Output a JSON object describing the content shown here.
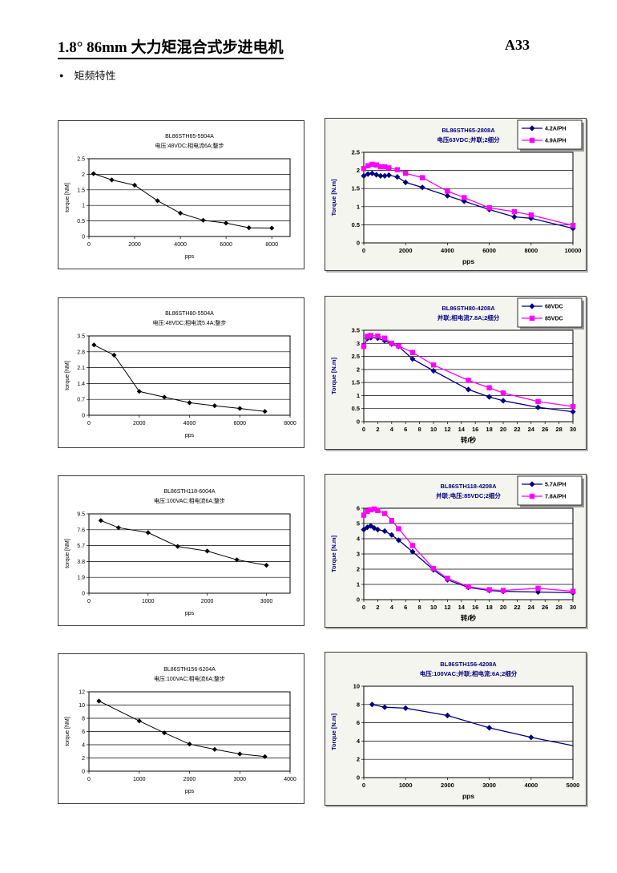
{
  "page": {
    "title": "1.8°  86mm 大力矩混合式步进电机",
    "page_number": "A33",
    "bullet_glyph": "●",
    "section_heading": "矩频特性"
  },
  "colors": {
    "navy": "#000080",
    "magenta": "#FF00FF",
    "black": "#000000",
    "left_chart_bg": "#FFFFFF",
    "right_chart_bg": "#F5F5EF"
  },
  "chart_data": [
    {
      "type": "line",
      "style": "plain",
      "bg": "#FFFFFF",
      "title": "BL86STH65-5904A",
      "subtitle": "电压:48VDC;相电流6A;整步",
      "xlabel": "pps",
      "ylabel": "torque  [NM]",
      "xlim": [
        0,
        8800
      ],
      "ylim": [
        0,
        2.5
      ],
      "xticks": [
        0,
        2000,
        4000,
        6000,
        8000
      ],
      "yticks": [
        0,
        0.5,
        1,
        1.5,
        2,
        2.5
      ],
      "grid": "horizontal",
      "legend": false,
      "series": [
        {
          "name": "",
          "color": "#000000",
          "marker": "diamond",
          "x": [
            200,
            1000,
            2000,
            3000,
            4000,
            5000,
            6000,
            7000,
            8000
          ],
          "y": [
            2.02,
            1.82,
            1.65,
            1.15,
            0.75,
            0.52,
            0.43,
            0.28,
            0.27
          ]
        }
      ]
    },
    {
      "type": "line",
      "style": "excel",
      "bg": "#F5F5EF",
      "title": "BL86STH65-2808A",
      "subtitle": "电压63VDC;并联;2细分",
      "xlabel": "pps",
      "ylabel": "Torque [N.m]",
      "xlim": [
        0,
        10000
      ],
      "ylim": [
        0,
        2.5
      ],
      "xticks": [
        0,
        2000,
        4000,
        6000,
        8000,
        10000
      ],
      "yticks": [
        0,
        0.5,
        1,
        1.5,
        2,
        2.5
      ],
      "grid": "horizontal",
      "legend": true,
      "legend_position": "top-right",
      "series": [
        {
          "name": "4.2A/PH",
          "color": "#000080",
          "marker": "diamond",
          "x": [
            0,
            200,
            400,
            600,
            800,
            1000,
            1200,
            1600,
            2000,
            2800,
            4000,
            4800,
            6000,
            7200,
            8000,
            10000
          ],
          "y": [
            1.85,
            1.9,
            1.92,
            1.88,
            1.85,
            1.85,
            1.87,
            1.82,
            1.67,
            1.53,
            1.3,
            1.15,
            0.92,
            0.72,
            0.68,
            0.4
          ]
        },
        {
          "name": "4.9A/PH",
          "color": "#FF00FF",
          "marker": "square",
          "x": [
            0,
            200,
            400,
            600,
            800,
            1000,
            1200,
            1600,
            2000,
            2800,
            4000,
            4800,
            6000,
            7200,
            8000,
            10000
          ],
          "y": [
            2.05,
            2.13,
            2.17,
            2.15,
            2.1,
            2.1,
            2.07,
            2.02,
            1.92,
            1.8,
            1.43,
            1.25,
            0.97,
            0.86,
            0.77,
            0.48
          ]
        }
      ]
    },
    {
      "type": "line",
      "style": "plain",
      "bg": "#FFFFFF",
      "title": "BL86STH80-5504A",
      "subtitle": "电压:48VDC;相电流5.4A;整步",
      "xlabel": "pps",
      "ylabel": "torque  [NM]",
      "xlim": [
        0,
        8000
      ],
      "ylim": [
        0,
        3.5
      ],
      "xticks": [
        0,
        2000,
        4000,
        6000,
        8000
      ],
      "yticks": [
        0,
        0.7,
        1.4,
        2.1,
        2.8,
        3.5
      ],
      "grid": "horizontal",
      "legend": false,
      "series": [
        {
          "name": "",
          "color": "#000000",
          "marker": "diamond",
          "x": [
            200,
            1000,
            2000,
            3000,
            4000,
            5000,
            6000,
            7000
          ],
          "y": [
            3.1,
            2.65,
            1.05,
            0.8,
            0.55,
            0.42,
            0.3,
            0.17
          ]
        }
      ]
    },
    {
      "type": "line",
      "style": "excel",
      "bg": "#F5F5EF",
      "title": "BL86STH80-4208A",
      "subtitle": "并联;相电流7.8A;2细分",
      "xlabel": "转/秒",
      "ylabel": "Torque [N.m]",
      "xlim": [
        0,
        30
      ],
      "ylim": [
        0,
        3.5
      ],
      "xticks": [
        0,
        2,
        4,
        6,
        8,
        10,
        12,
        14,
        16,
        18,
        20,
        22,
        24,
        26,
        28,
        30
      ],
      "yticks": [
        0,
        0.5,
        1,
        1.5,
        2,
        2.5,
        3,
        3.5
      ],
      "grid": "horizontal",
      "legend": true,
      "legend_position": "top-right",
      "series": [
        {
          "name": "68VDC",
          "color": "#000080",
          "marker": "diamond",
          "x": [
            0,
            0.5,
            1,
            2,
            3,
            4,
            5,
            7,
            10,
            15,
            18,
            20,
            25,
            30
          ],
          "y": [
            2.88,
            3.18,
            3.22,
            3.2,
            3.1,
            2.97,
            2.88,
            2.4,
            1.95,
            1.23,
            0.95,
            0.8,
            0.55,
            0.38
          ]
        },
        {
          "name": "85VDC",
          "color": "#FF00FF",
          "marker": "square",
          "x": [
            0,
            0.5,
            1,
            2,
            3,
            4,
            5,
            7,
            10,
            15,
            18,
            20,
            25,
            30
          ],
          "y": [
            2.88,
            3.27,
            3.3,
            3.28,
            3.2,
            3.0,
            2.9,
            2.65,
            2.17,
            1.58,
            1.3,
            1.1,
            0.77,
            0.58
          ]
        }
      ]
    },
    {
      "type": "line",
      "style": "plain",
      "bg": "#FFFFFF",
      "title": "BL86STH118-6004A",
      "subtitle": "电压:100VAC;相电流6A;整步",
      "xlabel": "pps",
      "ylabel": "torque  [NM]",
      "xlim": [
        0,
        3400
      ],
      "ylim": [
        0,
        9.5
      ],
      "xticks": [
        0,
        1000,
        2000,
        3000
      ],
      "yticks": [
        0,
        1.9,
        3.8,
        5.7,
        7.6,
        9.5
      ],
      "grid": "horizontal",
      "legend": false,
      "series": [
        {
          "name": "",
          "color": "#000000",
          "marker": "diamond",
          "x": [
            200,
            500,
            1000,
            1500,
            2000,
            2500,
            3000
          ],
          "y": [
            8.7,
            7.85,
            7.25,
            5.6,
            5.05,
            4.0,
            3.35
          ]
        }
      ]
    },
    {
      "type": "line",
      "style": "excel",
      "bg": "#F5F5EF",
      "title": "BL86STH118-4208A",
      "subtitle": "并联;电压:85VDC;2细分",
      "xlabel": "转/秒",
      "ylabel": "Torque [N.m]",
      "xlim": [
        0,
        30
      ],
      "ylim": [
        0,
        6
      ],
      "xticks": [
        0,
        2,
        4,
        6,
        8,
        10,
        12,
        14,
        16,
        18,
        20,
        22,
        24,
        26,
        28,
        30
      ],
      "yticks": [
        0,
        1,
        2,
        3,
        4,
        5,
        6
      ],
      "grid": "horizontal",
      "legend": true,
      "legend_position": "top-right",
      "series": [
        {
          "name": "5.7A/PH",
          "color": "#000080",
          "marker": "diamond",
          "x": [
            0,
            0.5,
            1,
            1.5,
            2,
            3,
            4,
            5,
            7,
            10,
            12,
            15,
            18,
            20,
            25,
            30
          ],
          "y": [
            4.6,
            4.75,
            4.85,
            4.7,
            4.6,
            4.5,
            4.25,
            3.9,
            3.15,
            1.95,
            1.3,
            0.8,
            0.6,
            0.55,
            0.5,
            0.45
          ]
        },
        {
          "name": "7.8A/PH",
          "color": "#FF00FF",
          "marker": "square",
          "x": [
            0,
            0.5,
            1,
            1.5,
            2,
            3,
            4,
            5,
            7,
            10,
            12,
            15,
            18,
            20,
            25,
            30
          ],
          "y": [
            5.55,
            5.8,
            5.9,
            5.95,
            5.85,
            5.65,
            5.2,
            4.65,
            3.55,
            2.05,
            1.4,
            0.85,
            0.65,
            0.6,
            0.75,
            0.55
          ]
        }
      ]
    },
    {
      "type": "line",
      "style": "plain",
      "bg": "#FFFFFF",
      "title": "BL86STH156-6204A",
      "subtitle": "电压:100VAC;相电流6A;整步",
      "xlabel": "pps",
      "ylabel": "torque  [NM]",
      "xlim": [
        0,
        4000
      ],
      "ylim": [
        0,
        12
      ],
      "xticks": [
        0,
        1000,
        2000,
        3000,
        4000
      ],
      "yticks": [
        0,
        2,
        4,
        6,
        8,
        10,
        12
      ],
      "grid": "horizontal",
      "legend": false,
      "series": [
        {
          "name": "",
          "color": "#000000",
          "marker": "diamond",
          "x": [
            200,
            1000,
            1500,
            2000,
            2500,
            3000,
            3500
          ],
          "y": [
            10.6,
            7.6,
            5.8,
            4.1,
            3.3,
            2.6,
            2.2
          ]
        }
      ]
    },
    {
      "type": "line",
      "style": "excel",
      "bg": "#F5F5EF",
      "title": "BL86STH156-4208A",
      "subtitle": "电压:100VAC;并联;相电流:6A;2细分",
      "xlabel": "pps",
      "ylabel": "Torque [N.m]",
      "xlim": [
        0,
        5000
      ],
      "ylim": [
        0,
        10
      ],
      "xticks": [
        0,
        1000,
        2000,
        3000,
        4000,
        5000
      ],
      "yticks": [
        0,
        2,
        4,
        6,
        8,
        10
      ],
      "grid": "horizontal",
      "legend": false,
      "series": [
        {
          "name": "",
          "color": "#000080",
          "marker": "diamond",
          "last_no_marker": true,
          "x": [
            200,
            500,
            1000,
            2000,
            3000,
            4000,
            5000
          ],
          "y": [
            8.0,
            7.7,
            7.6,
            6.8,
            5.45,
            4.4,
            3.5
          ]
        }
      ]
    }
  ]
}
